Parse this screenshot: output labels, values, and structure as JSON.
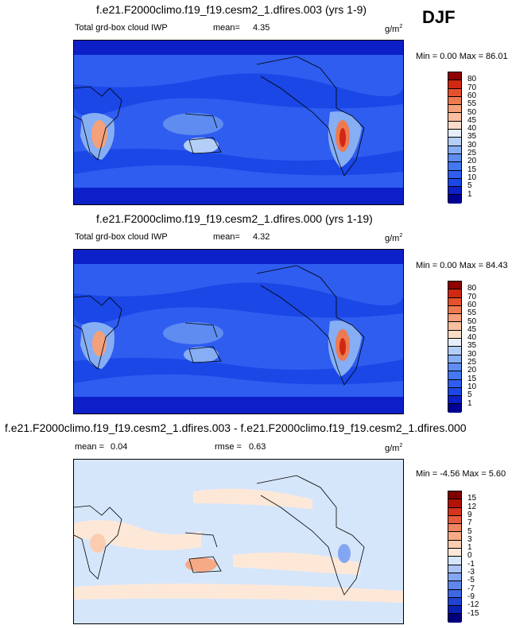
{
  "season": "DJF",
  "panels": [
    {
      "title": "f.e21.F2000climo.f19_f19.cesm2_1.dfires.003 (yrs 1-9)",
      "variable": "Total grd-box cloud IWP",
      "stat_label": "mean=",
      "stat_value": "4.35",
      "units": "g/m",
      "units_exp": "2",
      "minmax": "Min =  0.00 Max = 86.01"
    },
    {
      "title": "f.e21.F2000climo.f19_f19.cesm2_1.dfires.000 (yrs 1-19)",
      "variable": "Total grd-box cloud IWP",
      "stat_label": "mean=",
      "stat_value": "4.32",
      "units": "g/m",
      "units_exp": "2",
      "minmax": "Min =  0.00 Max = 84.43"
    },
    {
      "title": "f.e21.F2000climo.f19_f19.cesm2_1.dfires.003 - f.e21.F2000climo.f19_f19.cesm2_1.dfires.000",
      "mean_label": "mean =",
      "mean_value": "0.04",
      "rmse_label": "rmse =",
      "rmse_value": "0.63",
      "units": "g/m",
      "units_exp": "2",
      "minmax": "Min = -4.56 Max =  5.60"
    }
  ],
  "chart_data": [
    {
      "type": "heatmap",
      "title": "f.e21.F2000climo.f19_f19.cesm2_1.dfires.003 (yrs 1-9)",
      "variable": "Total grd-box cloud IWP",
      "season": "DJF",
      "units": "g/m2",
      "mean": 4.35,
      "min": 0.0,
      "max": 86.01,
      "contour_levels": [
        1,
        5,
        10,
        15,
        20,
        25,
        30,
        35,
        40,
        45,
        50,
        55,
        60,
        70,
        80
      ],
      "colors": [
        "#000094",
        "#0d20c8",
        "#1a47e6",
        "#2f5df0",
        "#4478f2",
        "#5e8cf0",
        "#86aef4",
        "#b3cff8",
        "#e6eefa",
        "#fbdcc8",
        "#f8bfa0",
        "#f4a07a",
        "#ee7a52",
        "#e5512e",
        "#d02812",
        "#8e0000"
      ]
    },
    {
      "type": "heatmap",
      "title": "f.e21.F2000climo.f19_f19.cesm2_1.dfires.000 (yrs 1-19)",
      "variable": "Total grd-box cloud IWP",
      "season": "DJF",
      "units": "g/m2",
      "mean": 4.32,
      "min": 0.0,
      "max": 84.43,
      "contour_levels": [
        1,
        5,
        10,
        15,
        20,
        25,
        30,
        35,
        40,
        45,
        50,
        55,
        60,
        70,
        80
      ],
      "colors": [
        "#000094",
        "#0d20c8",
        "#1a47e6",
        "#2f5df0",
        "#4478f2",
        "#5e8cf0",
        "#86aef4",
        "#b3cff8",
        "#e6eefa",
        "#fbdcc8",
        "#f8bfa0",
        "#f4a07a",
        "#ee7a52",
        "#e5512e",
        "#d02812",
        "#8e0000"
      ]
    },
    {
      "type": "heatmap",
      "title": "f.e21.F2000climo.f19_f19.cesm2_1.dfires.003 - f.e21.F2000climo.f19_f19.cesm2_1.dfires.000",
      "season": "DJF",
      "units": "g/m2",
      "mean": 0.04,
      "rmse": 0.63,
      "min": -4.56,
      "max": 5.6,
      "contour_levels": [
        -15,
        -12,
        -9,
        -7,
        -5,
        -3,
        -1,
        0,
        1,
        3,
        5,
        7,
        9,
        12,
        15
      ],
      "colors": [
        "#00007f",
        "#0b20b4",
        "#2143d4",
        "#3f66e4",
        "#5f86ec",
        "#84a6f2",
        "#aac4f6",
        "#d6e6fa",
        "#fde8d8",
        "#fbcdb0",
        "#f6aa86",
        "#ef8460",
        "#e65c3c",
        "#d6341c",
        "#b31208",
        "#7f0000"
      ]
    }
  ]
}
